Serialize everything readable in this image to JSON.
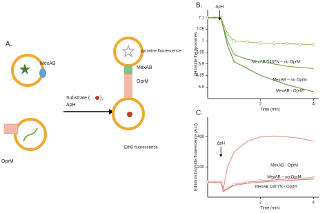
{
  "panel_a": {
    "label": "A.",
    "mexab": "MexAB",
    "oprm": "OprM",
    "substrate": "Substrate (",
    "substrate_end": "),",
    "delta_ph": "ΔpH",
    "pyranine": "pyranine fluorescence",
    "mexab_right": "MexAB",
    "oprm_right": "OprM",
    "ethb": "EthB fluorescence"
  },
  "chart_data": [
    {
      "type": "line",
      "panel": "B.",
      "y_label": "pH inside the liposomes",
      "x_label": "Time (min)",
      "x": [
        0,
        0.25,
        0.5,
        0.75,
        1,
        1.5,
        2,
        2.5,
        3,
        3.5,
        4
      ],
      "xlim": [
        0,
        4.2
      ],
      "xticks": [
        2,
        4
      ],
      "ylim": [
        6.75,
        7.135
      ],
      "yticks": [
        6.8,
        6.85,
        6.9,
        6.95,
        7,
        7.05,
        7.1
      ],
      "annotation": {
        "text": "ΔpH",
        "x": 0.45
      },
      "series": [
        {
          "name": "MexAB D407N – no OprM",
          "color": "#a8c27c",
          "marker": "circle",
          "values": [
            7.1,
            7.1,
            7.1,
            7.03,
            7.0,
            6.995,
            6.99,
            6.99,
            6.988,
            6.985,
            6.983
          ]
        },
        {
          "name": "MexAB – no OprM",
          "color": "#7fae55",
          "values": [
            7.1,
            7.1,
            7.1,
            7.0,
            6.94,
            6.92,
            6.91,
            6.9,
            6.89,
            6.885,
            6.88
          ]
        },
        {
          "name": "MexAB - OprM",
          "color": "#6aa046",
          "values": [
            7.1,
            7.1,
            7.1,
            6.98,
            6.91,
            6.88,
            6.85,
            6.83,
            6.81,
            6.795,
            6.78
          ]
        }
      ]
    },
    {
      "type": "line",
      "panel": "C.",
      "y_label": "Ethidium bromide fluorescence (A.U)",
      "x_label": "Time (min)",
      "x": [
        0,
        0.25,
        0.5,
        0.6,
        0.75,
        1,
        1.5,
        2,
        2.5,
        3,
        3.5,
        4
      ],
      "xlim": [
        0,
        4.2
      ],
      "xticks": [
        2,
        4
      ],
      "ylim": [
        0,
        530
      ],
      "yticks": [
        200,
        400
      ],
      "annotation": {
        "text": "ΔpH",
        "x": 0.5
      },
      "series": [
        {
          "name": "MexAB - OprM",
          "color": "#e09a92",
          "values": [
            100,
            100,
            100,
            60,
            200,
            300,
            370,
            400,
            405,
            400,
            390,
            370
          ]
        },
        {
          "name": "MexAB – no OprM",
          "color": "#e09a92",
          "marker": "circle",
          "values": [
            100,
            100,
            100,
            45,
            60,
            85,
            100,
            108,
            115,
            120,
            125,
            130
          ]
        },
        {
          "name": "MexAB D407N - OprM",
          "color": "#d98880",
          "values": [
            100,
            100,
            100,
            40,
            55,
            78,
            92,
            100,
            106,
            110,
            115,
            120
          ]
        }
      ]
    }
  ]
}
